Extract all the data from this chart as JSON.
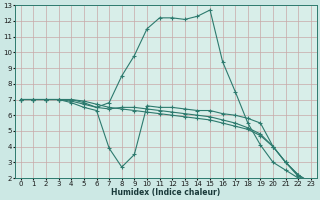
{
  "xlabel": "Humidex (Indice chaleur)",
  "bg_color": "#cce8e4",
  "plot_bg_color": "#d8eee9",
  "grid_color": "#c8a8a8",
  "line_color": "#2d7a6e",
  "xlim": [
    -0.5,
    23.5
  ],
  "ylim": [
    2,
    13
  ],
  "xticks": [
    0,
    1,
    2,
    3,
    4,
    5,
    6,
    7,
    8,
    9,
    10,
    11,
    12,
    13,
    14,
    15,
    16,
    17,
    18,
    19,
    20,
    21,
    22,
    23
  ],
  "yticks": [
    2,
    3,
    4,
    5,
    6,
    7,
    8,
    9,
    10,
    11,
    12,
    13
  ],
  "lines": [
    {
      "x": [
        0,
        1,
        2,
        3,
        4,
        5,
        6,
        7,
        8,
        9,
        10,
        11,
        12,
        13,
        14,
        15,
        16,
        17,
        18,
        19,
        20,
        21,
        22,
        23
      ],
      "y": [
        7,
        7,
        7,
        7,
        7,
        6.8,
        6.5,
        6.8,
        8.5,
        9.8,
        11.5,
        12.2,
        12.2,
        12.1,
        12.3,
        12.7,
        9.4,
        7.5,
        5.5,
        4.1,
        3.0,
        2.5,
        2.0,
        1.7
      ]
    },
    {
      "x": [
        0,
        1,
        2,
        3,
        4,
        5,
        6,
        7,
        8,
        9,
        10,
        11,
        12,
        13,
        14,
        15,
        16,
        17,
        18,
        19,
        20,
        21,
        22,
        23
      ],
      "y": [
        7,
        7,
        7,
        7,
        6.8,
        6.5,
        6.3,
        3.9,
        2.7,
        3.5,
        6.6,
        6.5,
        6.5,
        6.4,
        6.3,
        6.3,
        6.1,
        6.0,
        5.8,
        5.5,
        4.0,
        3.0,
        2.2,
        1.7
      ]
    },
    {
      "x": [
        0,
        1,
        2,
        3,
        4,
        5,
        6,
        7,
        8,
        9,
        10,
        11,
        12,
        13,
        14,
        15,
        16,
        17,
        18,
        19,
        20,
        21,
        22,
        23
      ],
      "y": [
        7,
        7,
        7,
        7,
        6.9,
        6.7,
        6.5,
        6.4,
        6.5,
        6.5,
        6.4,
        6.3,
        6.2,
        6.1,
        6.0,
        5.9,
        5.7,
        5.5,
        5.2,
        4.8,
        4.0,
        3.0,
        2.2,
        1.7
      ]
    },
    {
      "x": [
        0,
        1,
        2,
        3,
        4,
        5,
        6,
        7,
        8,
        9,
        10,
        11,
        12,
        13,
        14,
        15,
        16,
        17,
        18,
        19,
        20,
        21,
        22,
        23
      ],
      "y": [
        7,
        7,
        7,
        7,
        7,
        6.9,
        6.7,
        6.5,
        6.4,
        6.3,
        6.2,
        6.1,
        6.0,
        5.9,
        5.8,
        5.7,
        5.5,
        5.3,
        5.1,
        4.7,
        4.0,
        3.0,
        2.1,
        1.7
      ]
    }
  ]
}
